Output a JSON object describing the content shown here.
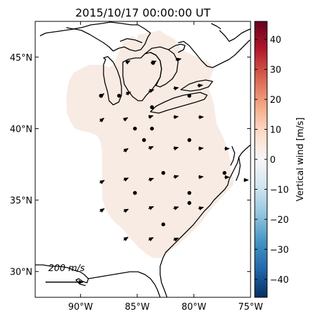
{
  "chart_data": {
    "type": "map",
    "title": "2015/10/17 00:00:00 UT",
    "x_ticks": [
      {
        "label": "90°W",
        "lon": -90
      },
      {
        "label": "85°W",
        "lon": -85
      },
      {
        "label": "80°W",
        "lon": -80
      },
      {
        "label": "75°W",
        "lon": -75
      }
    ],
    "y_ticks": [
      {
        "label": "45°N",
        "lat": 45
      },
      {
        "label": "40°N",
        "lat": 40
      },
      {
        "label": "35°N",
        "lat": 35
      },
      {
        "label": "30°N",
        "lat": 30
      }
    ],
    "lon_range": [
      -94,
      -75
    ],
    "lat_range": [
      28.2,
      47.5
    ],
    "colorbar": {
      "label": "Vertical wind [m/s]",
      "range": [
        -46,
        46
      ],
      "ticks": [
        40,
        30,
        20,
        10,
        0,
        -10,
        -20,
        -30,
        -40
      ],
      "tick_labels": [
        "40",
        "30",
        "20",
        "10",
        "0",
        "−10",
        "−20",
        "−30",
        "−40"
      ],
      "colors_low_to_high": [
        "#053061",
        "#2166ac",
        "#4393c3",
        "#92c5de",
        "#d1e5f0",
        "#f7f7f7",
        "#fddbc7",
        "#f4a582",
        "#d6604d",
        "#b2182b",
        "#67001f"
      ]
    },
    "field_color": "#f8ebe3",
    "scale_arrow": {
      "label": "200 m/s",
      "value_m_s": 200
    },
    "wind_vectors": [
      {
        "lon": -88.3,
        "lat": 42.2,
        "u": 35,
        "v": 30
      },
      {
        "lon": -86.0,
        "lat": 42.4,
        "u": 40,
        "v": 20
      },
      {
        "lon": -84.0,
        "lat": 42.6,
        "u": 45,
        "v": 15
      },
      {
        "lon": -81.8,
        "lat": 42.8,
        "u": 42,
        "v": 8
      },
      {
        "lon": -79.7,
        "lat": 43.0,
        "u": 45,
        "v": 5
      },
      {
        "lon": -83.8,
        "lat": 44.6,
        "u": 45,
        "v": 15
      },
      {
        "lon": -81.6,
        "lat": 44.8,
        "u": 45,
        "v": 10
      },
      {
        "lon": -86.0,
        "lat": 44.6,
        "u": 35,
        "v": 18
      },
      {
        "lon": -88.3,
        "lat": 40.5,
        "u": 35,
        "v": 28
      },
      {
        "lon": -86.2,
        "lat": 40.6,
        "u": 35,
        "v": 20
      },
      {
        "lon": -84.0,
        "lat": 40.8,
        "u": 38,
        "v": 12
      },
      {
        "lon": -81.8,
        "lat": 40.8,
        "u": 40,
        "v": 5
      },
      {
        "lon": -79.6,
        "lat": 40.8,
        "u": 42,
        "v": 2
      },
      {
        "lon": -86.2,
        "lat": 38.4,
        "u": 38,
        "v": 25
      },
      {
        "lon": -84.0,
        "lat": 38.6,
        "u": 40,
        "v": 18
      },
      {
        "lon": -81.8,
        "lat": 38.6,
        "u": 40,
        "v": 10
      },
      {
        "lon": -79.6,
        "lat": 38.6,
        "u": 40,
        "v": 5
      },
      {
        "lon": -77.3,
        "lat": 38.6,
        "u": 40,
        "v": 0
      },
      {
        "lon": -88.3,
        "lat": 36.2,
        "u": 38,
        "v": 22
      },
      {
        "lon": -86.2,
        "lat": 36.4,
        "u": 40,
        "v": 18
      },
      {
        "lon": -84.0,
        "lat": 36.4,
        "u": 42,
        "v": 15
      },
      {
        "lon": -81.8,
        "lat": 36.6,
        "u": 42,
        "v": 12
      },
      {
        "lon": -79.6,
        "lat": 36.6,
        "u": 40,
        "v": 5
      },
      {
        "lon": -77.3,
        "lat": 36.6,
        "u": 40,
        "v": 0
      },
      {
        "lon": -75.6,
        "lat": 36.4,
        "u": 38,
        "v": 0
      },
      {
        "lon": -88.3,
        "lat": 34.2,
        "u": 38,
        "v": 25
      },
      {
        "lon": -86.2,
        "lat": 34.2,
        "u": 40,
        "v": 20
      },
      {
        "lon": -84.0,
        "lat": 34.4,
        "u": 42,
        "v": 18
      },
      {
        "lon": -81.8,
        "lat": 34.4,
        "u": 42,
        "v": 15
      },
      {
        "lon": -79.6,
        "lat": 34.4,
        "u": 42,
        "v": 12
      },
      {
        "lon": -86.2,
        "lat": 32.2,
        "u": 38,
        "v": 25
      },
      {
        "lon": -84.0,
        "lat": 32.2,
        "u": 40,
        "v": 22
      },
      {
        "lon": -81.8,
        "lat": 32.2,
        "u": 42,
        "v": 18
      }
    ],
    "stations": [
      {
        "lon": -88.2,
        "lat": 42.3
      },
      {
        "lon": -86.6,
        "lat": 42.3
      },
      {
        "lon": -83.6,
        "lat": 44.6
      },
      {
        "lon": -80.4,
        "lat": 42.3
      },
      {
        "lon": -83.7,
        "lat": 41.5
      },
      {
        "lon": -85.2,
        "lat": 40.0
      },
      {
        "lon": -83.7,
        "lat": 40.0
      },
      {
        "lon": -84.4,
        "lat": 39.2
      },
      {
        "lon": -80.4,
        "lat": 39.2
      },
      {
        "lon": -82.7,
        "lat": 36.9
      },
      {
        "lon": -77.3,
        "lat": 36.9
      },
      {
        "lon": -85.2,
        "lat": 35.5
      },
      {
        "lon": -80.4,
        "lat": 35.5
      },
      {
        "lon": -80.4,
        "lat": 34.8
      },
      {
        "lon": -82.7,
        "lat": 33.3
      }
    ]
  }
}
